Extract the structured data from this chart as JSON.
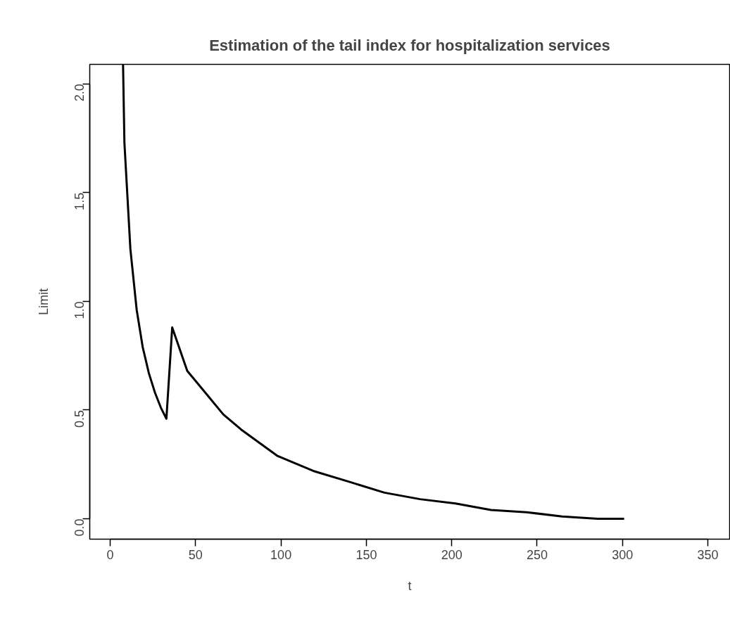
{
  "chart_data": {
    "type": "line",
    "title": "Estimation of the tail index for hospitalization services",
    "xlabel": "t",
    "ylabel": "Limit",
    "x": [
      7.5,
      8.3,
      11.8,
      15.5,
      19,
      22.6,
      26.2,
      29.7,
      32.9,
      36.3,
      45.1,
      55.7,
      66.2,
      76.7,
      87.2,
      97.7,
      118.9,
      139.9,
      160.6,
      181.4,
      202.2,
      223,
      243.9,
      264.7,
      285.5,
      301
    ],
    "series": [
      {
        "color": "#000000",
        "values": [
          2.09,
          1.73,
          1.24,
          0.96,
          0.79,
          0.67,
          0.58,
          0.51,
          0.46,
          0.88,
          0.68,
          0.58,
          0.48,
          0.41,
          0.35,
          0.29,
          0.22,
          0.17,
          0.12,
          0.09,
          0.07,
          0.04,
          0.03,
          0.01,
          0.0,
          0.0
        ]
      }
    ],
    "xlim": [
      -12,
      362.8
    ],
    "ylim": [
      -0.094,
      2.09
    ],
    "xticks": [
      0,
      50,
      100,
      150,
      200,
      250,
      300,
      350
    ],
    "yticks": [
      {
        "value": 0,
        "label": "0.0"
      },
      {
        "value": 0.5,
        "label": "0.5"
      },
      {
        "value": 1,
        "label": "1.0"
      },
      {
        "value": 1.5,
        "label": "1.5"
      },
      {
        "value": 2,
        "label": "2.0"
      }
    ],
    "marker": "none",
    "line_style": "solid"
  }
}
